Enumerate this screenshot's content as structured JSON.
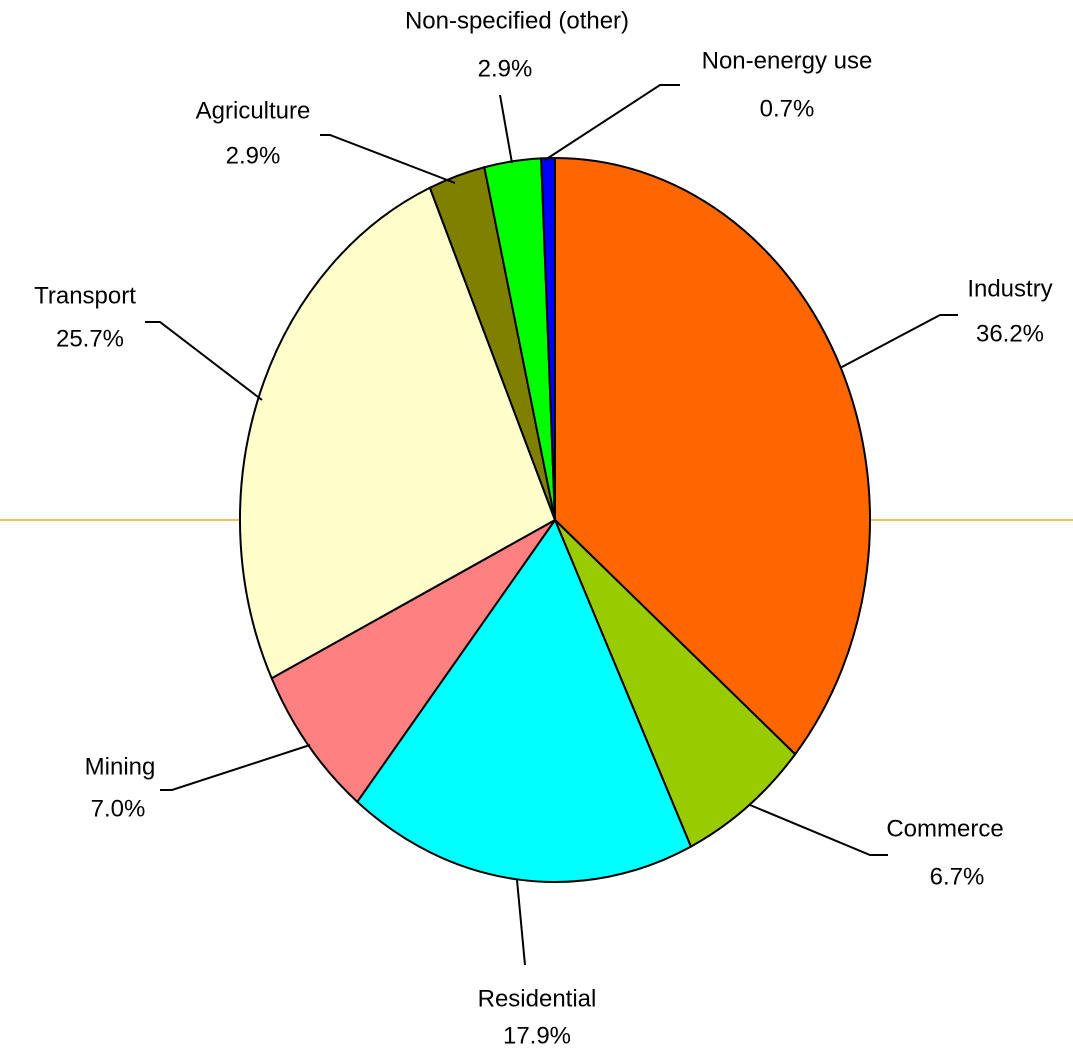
{
  "chart_data": {
    "type": "pie",
    "categories": [
      "Industry",
      "Commerce",
      "Residential",
      "Mining",
      "Transport",
      "Agriculture",
      "Non-specified (other)",
      "Non-energy use"
    ],
    "values": [
      36.2,
      6.7,
      17.9,
      7.0,
      25.7,
      2.9,
      2.9,
      0.7
    ],
    "value_labels": [
      "36.2%",
      "6.7%",
      "17.9%",
      "7.0%",
      "25.7%",
      "2.9%",
      "2.9%",
      "0.7%"
    ],
    "colors": [
      "#ff6600",
      "#99cc00",
      "#00ffff",
      "#ff8080",
      "#ffffcc",
      "#808000",
      "#00ff00",
      "#0000ff"
    ]
  }
}
